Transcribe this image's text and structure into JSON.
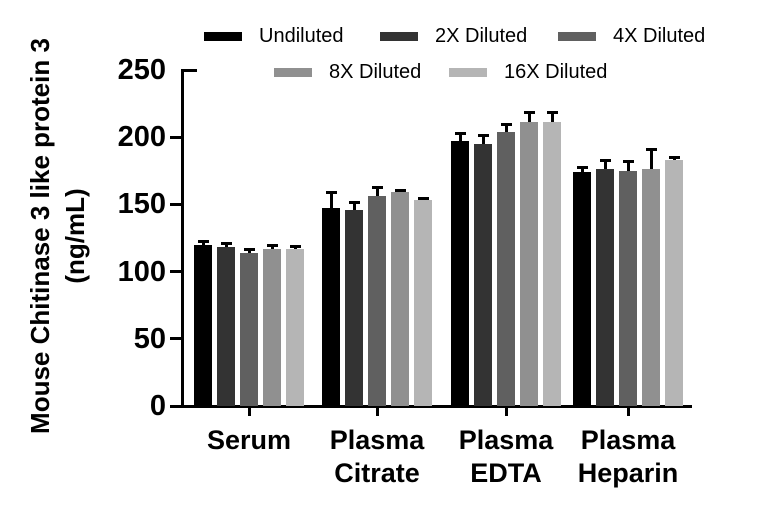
{
  "figure": {
    "background_color": "#ffffff",
    "axis_color": "#000000",
    "text_color": "#000000"
  },
  "chart_data": {
    "type": "bar",
    "title": "",
    "xlabel": "",
    "ylabel": "Mouse Chitinase 3 like protein 3 (ng/mL)",
    "ylabel_lines": [
      "Mouse Chitinase 3 like protein 3",
      "(ng/mL)"
    ],
    "ylim": [
      0,
      250
    ],
    "yticks": [
      0,
      50,
      100,
      150,
      200,
      250
    ],
    "grid": false,
    "legend_position": "top, two rows",
    "error_bars": "upper only, black with caps",
    "categories": [
      "Serum",
      "Plasma Citrate",
      "Plasma EDTA",
      "Plasma Heparin"
    ],
    "category_lines": [
      [
        "Serum"
      ],
      [
        "Plasma",
        "Citrate"
      ],
      [
        "Plasma",
        "EDTA"
      ],
      [
        "Plasma",
        "Heparin"
      ]
    ],
    "series": [
      {
        "name": "Undiluted",
        "color": "#000000",
        "values": [
          120,
          147,
          197,
          174
        ],
        "errors": [
          3,
          12,
          6,
          4
        ]
      },
      {
        "name": "2X Diluted",
        "color": "#333333",
        "values": [
          118,
          146,
          195,
          176
        ],
        "errors": [
          3,
          6,
          7,
          7
        ]
      },
      {
        "name": "4X Diluted",
        "color": "#606060",
        "values": [
          114,
          156,
          204,
          175
        ],
        "errors": [
          3,
          7,
          6,
          7
        ]
      },
      {
        "name": "8X Diluted",
        "color": "#909090",
        "values": [
          117,
          159,
          211,
          176
        ],
        "errors": [
          3,
          2,
          8,
          15
        ]
      },
      {
        "name": "16X Diluted",
        "color": "#b5b5b5",
        "values": [
          117,
          153,
          211,
          183
        ],
        "errors": [
          2,
          2,
          8,
          2
        ]
      }
    ]
  }
}
